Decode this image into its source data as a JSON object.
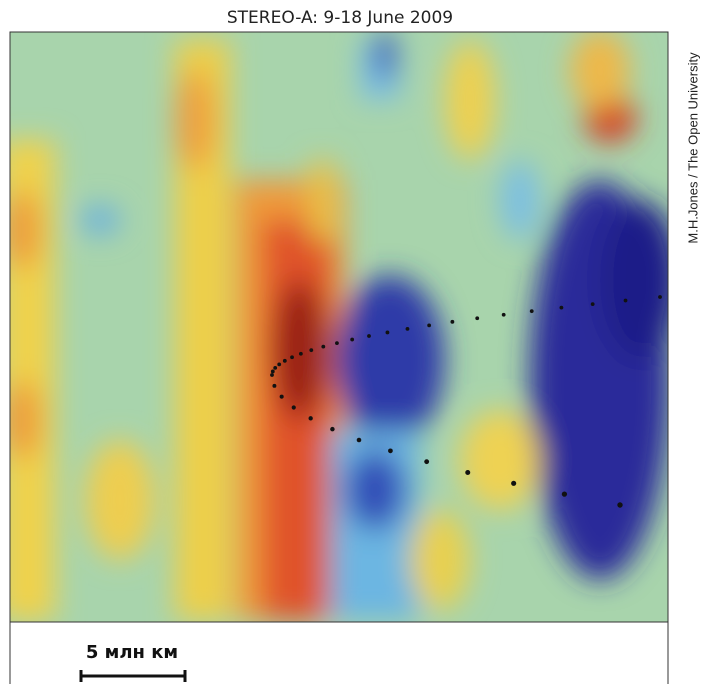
{
  "title": "STEREO-A: 9-18 June 2009",
  "credit": "M.H.Jones / The Open University",
  "scale_bar": {
    "label": "5 млн км"
  }
}
